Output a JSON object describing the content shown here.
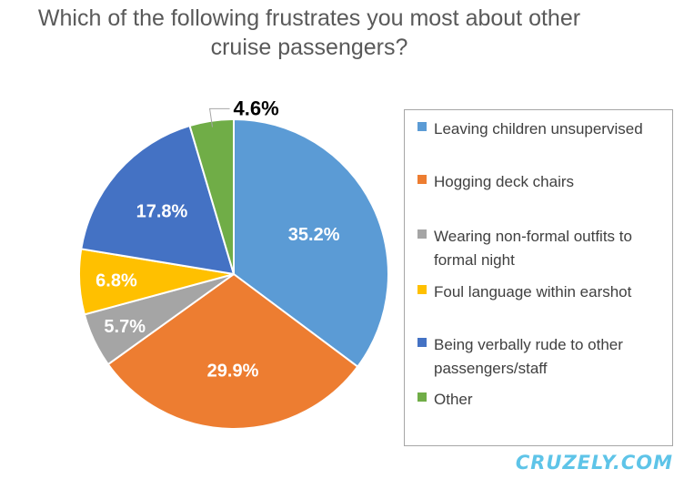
{
  "chart_data": {
    "type": "pie",
    "title": "Which of the following frustrates you most about other cruise passengers?",
    "title_lines": [
      "Which of the following frustrates you most about other",
      "cruise passengers?"
    ],
    "slices": [
      {
        "label": "Leaving children unsupervised",
        "value": 35.2,
        "display": "35.2%",
        "color": "#5b9bd5"
      },
      {
        "label": "Hogging deck chairs",
        "value": 29.9,
        "display": "29.9%",
        "color": "#ed7d31"
      },
      {
        "label": "Wearing non-formal outfits to formal night",
        "value": 5.7,
        "display": "5.7%",
        "color": "#a5a5a5"
      },
      {
        "label": "Foul language within earshot",
        "value": 6.8,
        "display": "6.8%",
        "color": "#ffc000"
      },
      {
        "label": "Being verbally rude to other passengers/staff",
        "value": 17.8,
        "display": "17.8%",
        "color": "#4472c4"
      },
      {
        "label": "Other",
        "value": 4.6,
        "display": "4.6%",
        "color": "#70ad47"
      }
    ],
    "legend_placement": "right"
  },
  "watermark": "CRUZELY.COM"
}
